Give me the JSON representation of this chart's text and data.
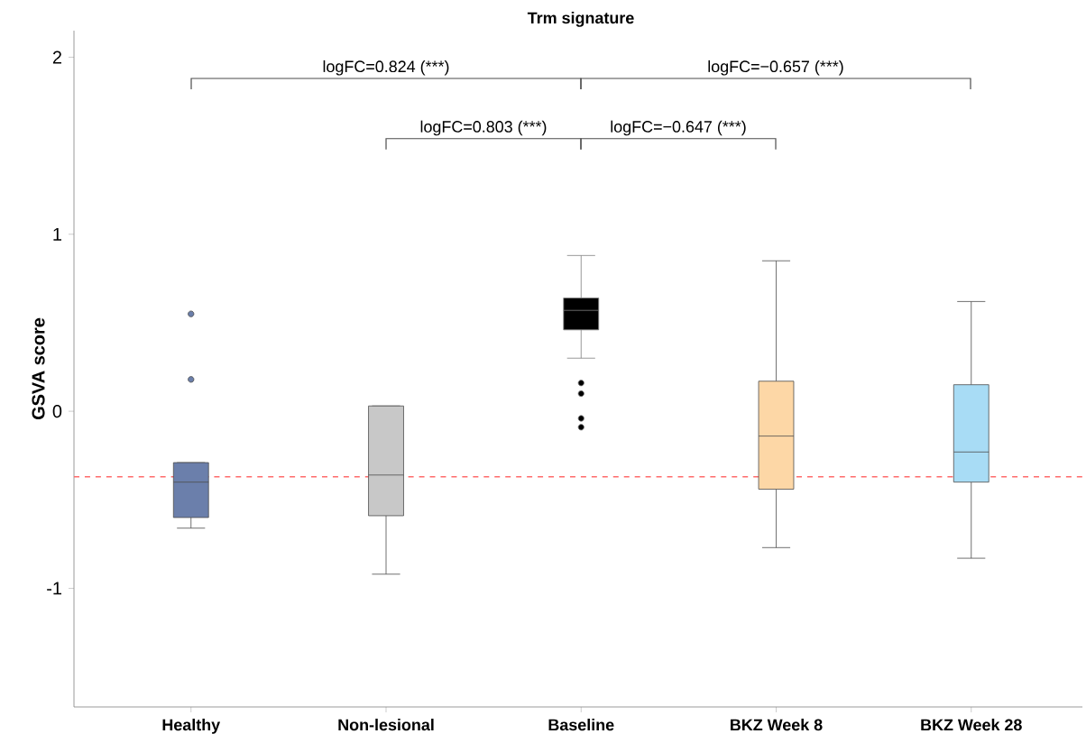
{
  "chart_data": {
    "type": "box",
    "title": "Trm signature",
    "ylabel": "GSVA score",
    "categories": [
      "Healthy",
      "Non-lesional",
      "Baseline",
      "BKZ Week 8",
      "BKZ Week 28"
    ],
    "colors": [
      "#6b7fab",
      "#c8c8c8",
      "#000000",
      "#fdd7a6",
      "#a8dcf5"
    ],
    "boxes": [
      {
        "low": -0.66,
        "q1": -0.6,
        "median": -0.4,
        "q3": -0.29,
        "high": -0.29,
        "outliers": [
          0.55,
          0.18
        ]
      },
      {
        "low": -0.92,
        "q1": -0.59,
        "median": -0.36,
        "q3": 0.03,
        "high": 0.03
      },
      {
        "low": 0.3,
        "q1": 0.46,
        "median": 0.57,
        "q3": 0.64,
        "high": 0.88,
        "outliers": [
          0.16,
          0.1,
          -0.04,
          -0.09
        ]
      },
      {
        "low": -0.77,
        "q1": -0.44,
        "median": -0.14,
        "q3": 0.17,
        "high": 0.85
      },
      {
        "low": -0.83,
        "q1": -0.4,
        "median": -0.23,
        "q3": 0.15,
        "high": 0.62
      }
    ],
    "ylim": [
      -1.67,
      2.15
    ],
    "yticks": [
      -1,
      0,
      1,
      2
    ],
    "ref_lines": [
      {
        "axis": "y",
        "value": -0.37,
        "color": "#ff6b6b",
        "line_style": "dashed"
      }
    ],
    "annotations": [
      "logFC=0.824 (***)",
      "logFC=−0.657 (***)",
      "logFC=0.803 (***)",
      "logFC=−0.647 (***)"
    ]
  }
}
